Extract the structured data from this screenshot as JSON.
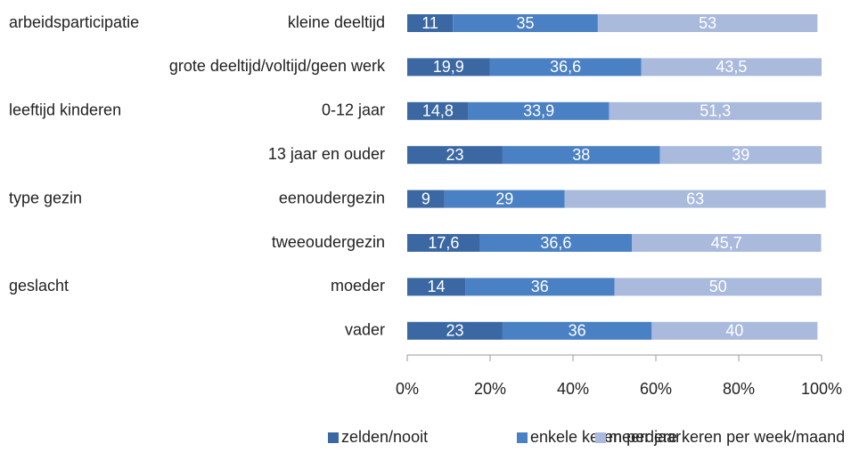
{
  "chart_data": {
    "type": "stacked-bar-horizontal",
    "categories": [
      "kleine deeltijd",
      "grote deeltijd/voltijd/geen werk",
      "0-12 jaar",
      "13 jaar en ouder",
      "eenoudergezin",
      "tweeoudergezin",
      "moeder",
      "vader"
    ],
    "group_labels": [
      "arbeidsparticipatie",
      null,
      "leeftijd kinderen",
      null,
      "type gezin",
      null,
      "geslacht",
      null
    ],
    "series": [
      {
        "name": "zelden/nooit",
        "color": "#3b68a3",
        "values": [
          11,
          19.9,
          14.8,
          23,
          9,
          17.6,
          14,
          23
        ],
        "value_labels": [
          "11",
          "19,9",
          "14,8",
          "23",
          "9",
          "17,6",
          "14",
          "23"
        ]
      },
      {
        "name": "enkele keren per jaar",
        "color": "#4a80c4",
        "values": [
          35,
          36.6,
          33.9,
          38,
          29,
          36.6,
          36,
          36
        ],
        "value_labels": [
          "35",
          "36,6",
          "33,9",
          "38",
          "29",
          "36,6",
          "36",
          "36"
        ]
      },
      {
        "name": "meerdere keren per week/maand",
        "color": "#a9badd",
        "values": [
          53,
          43.5,
          51.3,
          39,
          63,
          45.7,
          50,
          40
        ],
        "value_labels": [
          "53",
          "43,5",
          "51,3",
          "39",
          "63",
          "45,7",
          "50",
          "40"
        ]
      }
    ],
    "xlim": [
      0,
      100
    ],
    "xticks": [
      {
        "value": 0,
        "label": "0%"
      },
      {
        "value": 20,
        "label": "20%"
      },
      {
        "value": 40,
        "label": "40%"
      },
      {
        "value": 60,
        "label": "60%"
      },
      {
        "value": 80,
        "label": "80%"
      },
      {
        "value": 100,
        "label": "100%"
      }
    ],
    "legend": "bottom"
  }
}
